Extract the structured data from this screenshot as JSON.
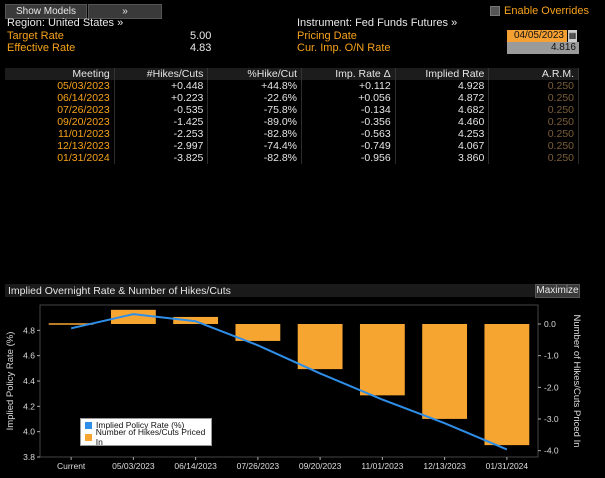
{
  "toolbar": {
    "show_models": "Show Models",
    "chevron": "»",
    "enable_overrides": "Enable Overrides"
  },
  "left_panel": {
    "region_label": "Region: United States »",
    "target_rate_label": "Target Rate",
    "target_rate_value": "5.00",
    "effective_rate_label": "Effective Rate",
    "effective_rate_value": "4.83"
  },
  "right_panel": {
    "instrument_label": "Instrument: Fed Funds Futures »",
    "pricing_date_label": "Pricing Date",
    "pricing_date_value": "04/05/2023",
    "cur_imp_label": "Cur. Imp. O/N Rate",
    "cur_imp_value": "4.816"
  },
  "table": {
    "headers": [
      "Meeting",
      "#Hikes/Cuts",
      "%Hike/Cut",
      "Imp. Rate Δ",
      "Implied Rate",
      "A.R.M."
    ],
    "rows": [
      [
        "05/03/2023",
        "+0.448",
        "+44.8%",
        "+0.112",
        "4.928",
        "0.250"
      ],
      [
        "06/14/2023",
        "+0.223",
        "-22.6%",
        "+0.056",
        "4.872",
        "0.250"
      ],
      [
        "07/26/2023",
        "-0.535",
        "-75.8%",
        "-0.134",
        "4.682",
        "0.250"
      ],
      [
        "09/20/2023",
        "-1.425",
        "-89.0%",
        "-0.356",
        "4.460",
        "0.250"
      ],
      [
        "11/01/2023",
        "-2.253",
        "-82.8%",
        "-0.563",
        "4.253",
        "0.250"
      ],
      [
        "12/13/2023",
        "-2.997",
        "-74.4%",
        "-0.749",
        "4.067",
        "0.250"
      ],
      [
        "01/31/2024",
        "-3.825",
        "-82.8%",
        "-0.956",
        "3.860",
        "0.250"
      ]
    ]
  },
  "chart": {
    "title": "Implied Overnight Rate & Number of Hikes/Cuts",
    "maximize": "Maximize"
  },
  "chart_data": {
    "type": "bar",
    "categories": [
      "Current",
      "05/03/2023",
      "06/14/2023",
      "07/26/2023",
      "09/20/2023",
      "11/01/2023",
      "12/13/2023",
      "01/31/2024"
    ],
    "ylabel": "Implied Policy Rate (%)",
    "y2label": "Number of Hikes/Cuts Priced In",
    "ylim": [
      3.8,
      5.0
    ],
    "y2lim": [
      -4.2,
      0.6
    ],
    "yticks": [
      "4.8",
      "4.6",
      "4.4",
      "4.2",
      "4.0",
      "3.8"
    ],
    "y2ticks": [
      "0.0",
      "-1.0",
      "-2.0",
      "-3.0",
      "-4.0"
    ],
    "series": [
      {
        "name": "Implied Policy Rate (%)",
        "type": "line",
        "color": "#2f8fe8",
        "values": [
          4.816,
          4.928,
          4.872,
          4.682,
          4.46,
          4.253,
          4.067,
          3.86
        ]
      },
      {
        "name": "Number of Hikes/Cuts Priced In",
        "type": "bar",
        "color": "#f7a531",
        "values": [
          0.0,
          0.448,
          0.223,
          -0.535,
          -1.425,
          -2.253,
          -2.997,
          -3.825
        ]
      }
    ]
  }
}
